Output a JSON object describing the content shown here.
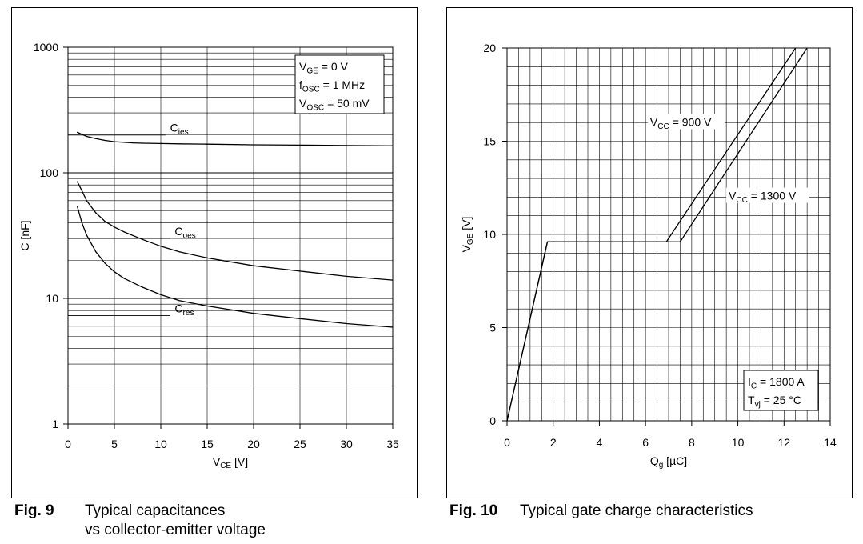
{
  "figures": [
    {
      "number": "Fig. 9",
      "caption_line1": "Typical capacitances",
      "caption_line2": "vs collector-emitter voltage"
    },
    {
      "number": "Fig. 10",
      "caption_line1": "Typical gate charge characteristics",
      "caption_line2": ""
    }
  ],
  "chart_data": [
    {
      "type": "line",
      "scale": "log-y",
      "xlabel_main": "V",
      "xlabel_sub": "CE",
      "xlabel_unit": "[V]",
      "ylabel": "C [nF]",
      "xlim": [
        0,
        35
      ],
      "ylim": [
        1,
        1000
      ],
      "x_ticks": [
        0,
        5,
        10,
        15,
        20,
        25,
        30,
        35
      ],
      "y_ticks": [
        1,
        10,
        100,
        1000
      ],
      "y_tick_labels": [
        "1",
        "10",
        "100",
        "1000"
      ],
      "grid": true,
      "legend_box": {
        "placement": "top-right",
        "lines": [
          {
            "main": "V",
            "sub": "GE",
            "rest": " = 0 V"
          },
          {
            "main": "f",
            "sub": "OSC",
            "rest": " = 1 MHz"
          },
          {
            "main": "V",
            "sub": "OSC",
            "rest": " = 50 mV"
          }
        ]
      },
      "series": [
        {
          "name_main": "C",
          "name_sub": "ies",
          "label_at": [
            11,
            200
          ],
          "leader_from": [
            0,
            200
          ],
          "leader_to": [
            10.5,
            200
          ],
          "x": [
            1,
            2,
            3,
            4,
            5,
            6,
            7,
            8,
            10,
            12,
            15,
            20,
            25,
            30,
            35
          ],
          "y": [
            210,
            195,
            187,
            181,
            177,
            175,
            173,
            172,
            171,
            170,
            169,
            167,
            166,
            165,
            164
          ]
        },
        {
          "name_main": "C",
          "name_sub": "oes",
          "label_at": [
            11.5,
            30
          ],
          "leader_from": [
            0,
            30
          ],
          "leader_to": [
            11,
            30
          ],
          "x": [
            1,
            1.5,
            2,
            3,
            4,
            5,
            6,
            8,
            10,
            12,
            15,
            20,
            25,
            30,
            35
          ],
          "y": [
            85,
            72,
            60,
            48,
            41,
            37,
            34,
            29.5,
            26,
            23.5,
            21,
            18.2,
            16.5,
            15,
            14
          ]
        },
        {
          "name_main": "C",
          "name_sub": "res",
          "label_at": [
            11.5,
            7.3
          ],
          "leader_from": [
            0,
            7.3
          ],
          "leader_to": [
            11,
            7.3
          ],
          "x": [
            1,
            1.5,
            2,
            3,
            4,
            5,
            6,
            8,
            10,
            12,
            15,
            20,
            25,
            30,
            35
          ],
          "y": [
            54,
            40,
            32,
            23.5,
            19,
            16.3,
            14.5,
            12.3,
            10.7,
            9.6,
            8.7,
            7.6,
            6.9,
            6.3,
            5.9
          ]
        }
      ]
    },
    {
      "type": "line",
      "xlabel_main": "Q",
      "xlabel_sub": "g",
      "xlabel_unit": "[µC]",
      "ylabel_main": "V",
      "ylabel_sub": "GE",
      "ylabel_unit": "[V]",
      "xlim": [
        0,
        14
      ],
      "ylim": [
        0,
        20
      ],
      "x_ticks": [
        0,
        2,
        4,
        6,
        8,
        10,
        12,
        14
      ],
      "y_ticks": [
        0,
        5,
        10,
        15,
        20
      ],
      "grid": true,
      "legend_box": {
        "placement": "bottom-right",
        "lines": [
          {
            "main": "I",
            "sub": "C",
            "rest": " = 1800 A"
          },
          {
            "main": "T",
            "sub": "vj",
            "rest": " = 25 °C"
          }
        ]
      },
      "series": [
        {
          "name_main": "V",
          "name_sub": "CC",
          "name_rest": " = 900 V",
          "label_at": [
            6.2,
            15.9
          ],
          "x": [
            0,
            1.75,
            6.9,
            12.5
          ],
          "y": [
            0,
            9.6,
            9.6,
            20
          ]
        },
        {
          "name_main": "V",
          "name_sub": "CC",
          "name_rest": " = 1300 V",
          "label_at": [
            9.6,
            11.95
          ],
          "x": [
            0,
            1.75,
            7.5,
            13.0
          ],
          "y": [
            0,
            9.6,
            9.6,
            20
          ]
        }
      ]
    }
  ]
}
